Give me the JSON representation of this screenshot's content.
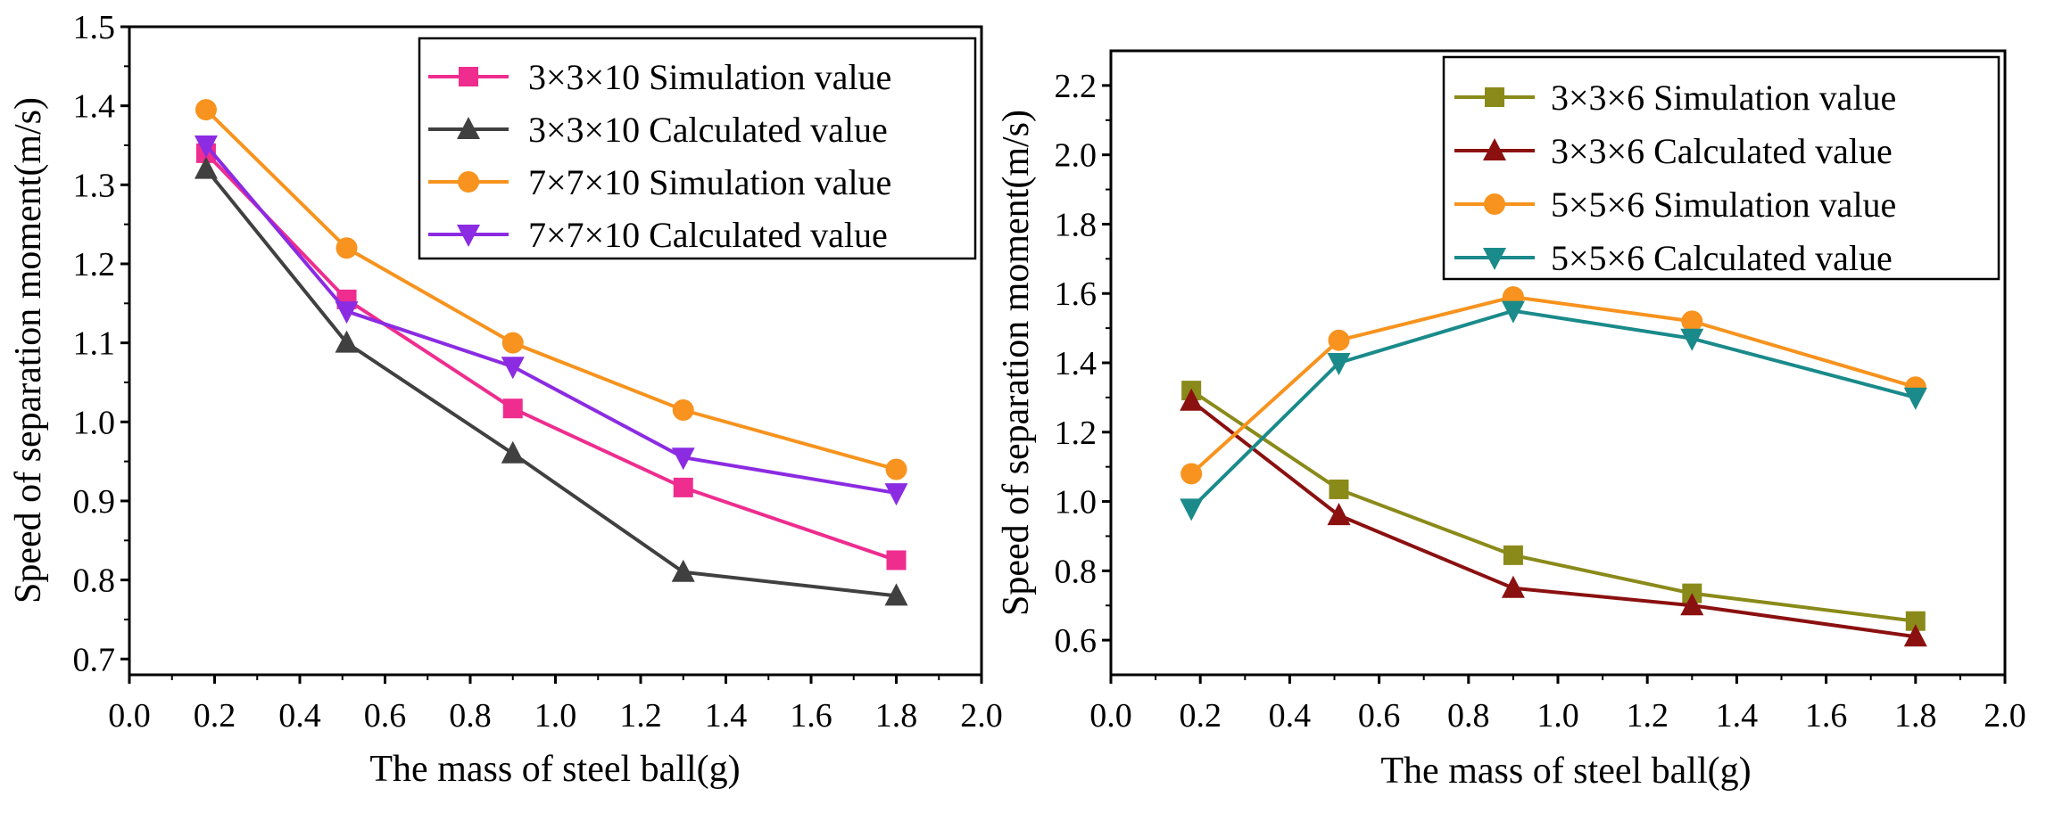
{
  "chart_data": [
    {
      "type": "line",
      "title": "",
      "xlabel": "The mass of steel ball(g)",
      "ylabel": "Speed of separation moment(m/s)",
      "xlim": [
        0.0,
        2.0
      ],
      "ylim": [
        0.68,
        1.5
      ],
      "xticks": [
        "0.0",
        "0.2",
        "0.4",
        "0.6",
        "0.8",
        "1.0",
        "1.2",
        "1.4",
        "1.6",
        "1.8",
        "2.0"
      ],
      "yticks": [
        "0.7",
        "0.8",
        "0.9",
        "1.0",
        "1.1",
        "1.2",
        "1.3",
        "1.4",
        "1.5"
      ],
      "legend_position": "top-right",
      "series": [
        {
          "name": "3×3×10 Simulation value",
          "marker": "square",
          "color": "#ee2d8f",
          "x": [
            0.18,
            0.51,
            0.9,
            1.3,
            1.8
          ],
          "y": [
            1.34,
            1.155,
            1.017,
            0.917,
            0.825
          ]
        },
        {
          "name": "3×3×10 Calculated value",
          "marker": "triangle-up",
          "color": "#404040",
          "x": [
            0.18,
            0.51,
            0.9,
            1.3,
            1.8
          ],
          "y": [
            1.32,
            1.1,
            0.96,
            0.81,
            0.78
          ]
        },
        {
          "name": "7×7×10 Simulation value",
          "marker": "circle",
          "color": "#f7931e",
          "x": [
            0.18,
            0.51,
            0.9,
            1.3,
            1.8
          ],
          "y": [
            1.395,
            1.22,
            1.1,
            1.015,
            0.94
          ]
        },
        {
          "name": "7×7×10 Calculated value",
          "marker": "triangle-down",
          "color": "#8b2be2",
          "x": [
            0.18,
            0.51,
            0.9,
            1.3,
            1.8
          ],
          "y": [
            1.35,
            1.14,
            1.07,
            0.955,
            0.91
          ]
        }
      ]
    },
    {
      "type": "line",
      "title": "",
      "xlabel": "The mass of steel ball(g)",
      "ylabel": "Speed of separation moment(m/s)",
      "xlim": [
        0.0,
        2.0
      ],
      "ylim": [
        0.5,
        2.3
      ],
      "xticks": [
        "0.0",
        "0.2",
        "0.4",
        "0.6",
        "0.8",
        "1.0",
        "1.2",
        "1.4",
        "1.6",
        "1.8",
        "2.0"
      ],
      "yticks": [
        "0.6",
        "0.8",
        "1.0",
        "1.2",
        "1.4",
        "1.6",
        "1.8",
        "2.0",
        "2.2"
      ],
      "legend_position": "top-right",
      "series": [
        {
          "name": "3×3×6 Simulation value",
          "marker": "square",
          "color": "#8a8a1a",
          "x": [
            0.18,
            0.51,
            0.9,
            1.3,
            1.8
          ],
          "y": [
            1.32,
            1.035,
            0.845,
            0.735,
            0.655
          ]
        },
        {
          "name": "3×3×6 Calculated value",
          "marker": "triangle-up",
          "color": "#8b1010",
          "x": [
            0.18,
            0.51,
            0.9,
            1.3,
            1.8
          ],
          "y": [
            1.29,
            0.96,
            0.75,
            0.7,
            0.61
          ]
        },
        {
          "name": "5×5×6 Simulation value",
          "marker": "circle",
          "color": "#f7931e",
          "x": [
            0.18,
            0.51,
            0.9,
            1.3,
            1.8
          ],
          "y": [
            1.08,
            1.465,
            1.59,
            1.52,
            1.33
          ]
        },
        {
          "name": "5×5×6 Calculated value",
          "marker": "triangle-down",
          "color": "#1a8a8a",
          "x": [
            0.18,
            0.51,
            0.9,
            1.3,
            1.8
          ],
          "y": [
            0.98,
            1.4,
            1.55,
            1.47,
            1.3
          ]
        }
      ]
    }
  ]
}
